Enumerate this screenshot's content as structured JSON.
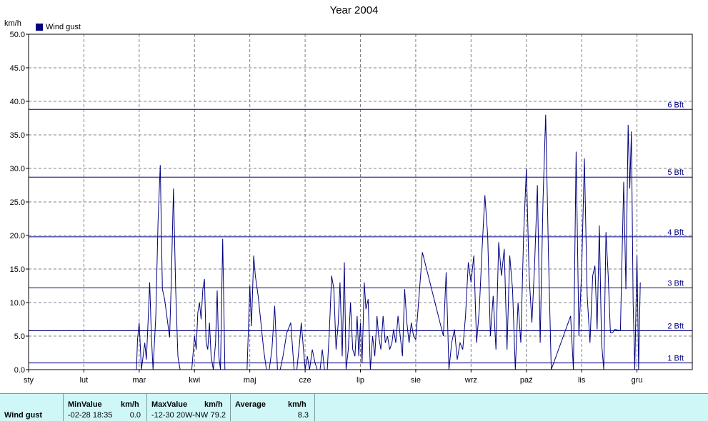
{
  "chart_data": {
    "type": "line",
    "title": "Year 2004",
    "ylabel": "km/h",
    "ylim": [
      0,
      50
    ],
    "yticks": [
      "0.0",
      "5.0",
      "10.0",
      "15.0",
      "20.0",
      "25.0",
      "30.0",
      "35.0",
      "40.0",
      "45.0",
      "50.0"
    ],
    "xticks": [
      "sty",
      "lut",
      "mar",
      "kwi",
      "maj",
      "cze",
      "lip",
      "sie",
      "wrz",
      "paź",
      "lis",
      "gru"
    ],
    "grid": true,
    "legend_position": "top-left",
    "beaufort_lines": [
      {
        "label": "1 Bft",
        "value": 1.0
      },
      {
        "label": "2 Bft",
        "value": 5.8
      },
      {
        "label": "3 Bft",
        "value": 12.2
      },
      {
        "label": "4 Bft",
        "value": 19.8
      },
      {
        "label": "5 Bft",
        "value": 28.7
      },
      {
        "label": "6 Bft",
        "value": 38.8
      }
    ],
    "series": [
      {
        "name": "Wind gust",
        "color": "#000080",
        "x_unit": "month (1 = January)",
        "points": [
          [
            2.95,
            0
          ],
          [
            2.97,
            4.5
          ],
          [
            3.0,
            7.0
          ],
          [
            3.02,
            3.5
          ],
          [
            3.04,
            0
          ],
          [
            3.07,
            2.0
          ],
          [
            3.1,
            4.0
          ],
          [
            3.13,
            1.5
          ],
          [
            3.16,
            7.0
          ],
          [
            3.19,
            13.0
          ],
          [
            3.22,
            5.0
          ],
          [
            3.25,
            0
          ],
          [
            3.3,
            8.0
          ],
          [
            3.34,
            22.0
          ],
          [
            3.38,
            30.5
          ],
          [
            3.42,
            12.0
          ],
          [
            3.46,
            10.5
          ],
          [
            3.5,
            8.0
          ],
          [
            3.55,
            4.8
          ],
          [
            3.58,
            13.0
          ],
          [
            3.62,
            27.0
          ],
          [
            3.66,
            12.0
          ],
          [
            3.7,
            2.0
          ],
          [
            3.74,
            0
          ],
          [
            3.95,
            0
          ],
          [
            4.0,
            5.0
          ],
          [
            4.03,
            3.0
          ],
          [
            4.06,
            8.5
          ],
          [
            4.09,
            10.0
          ],
          [
            4.12,
            7.5
          ],
          [
            4.15,
            12.0
          ],
          [
            4.18,
            13.5
          ],
          [
            4.21,
            4.0
          ],
          [
            4.24,
            3.0
          ],
          [
            4.27,
            7.0
          ],
          [
            4.3,
            2.0
          ],
          [
            4.34,
            0
          ],
          [
            4.38,
            4.0
          ],
          [
            4.41,
            11.8
          ],
          [
            4.44,
            2.0
          ],
          [
            4.47,
            0
          ],
          [
            4.51,
            19.5
          ],
          [
            4.55,
            0
          ],
          [
            4.6,
            0
          ],
          [
            4.95,
            0
          ],
          [
            5.0,
            12.5
          ],
          [
            5.03,
            6.5
          ],
          [
            5.07,
            17.0
          ],
          [
            5.1,
            14.0
          ],
          [
            5.15,
            11.0
          ],
          [
            5.2,
            7.0
          ],
          [
            5.25,
            3.0
          ],
          [
            5.3,
            0
          ],
          [
            5.35,
            0
          ],
          [
            5.4,
            3.0
          ],
          [
            5.45,
            9.5
          ],
          [
            5.5,
            0
          ],
          [
            5.55,
            0
          ],
          [
            5.6,
            2.0
          ],
          [
            5.67,
            5.5
          ],
          [
            5.74,
            7.0
          ],
          [
            5.8,
            0
          ],
          [
            5.85,
            0
          ],
          [
            5.9,
            4.0
          ],
          [
            5.93,
            7.0
          ],
          [
            5.97,
            3.0
          ],
          [
            6.0,
            0
          ],
          [
            6.04,
            2.0
          ],
          [
            6.08,
            0
          ],
          [
            6.13,
            3.0
          ],
          [
            6.18,
            1.0
          ],
          [
            6.22,
            0
          ],
          [
            6.27,
            0
          ],
          [
            6.31,
            3.0
          ],
          [
            6.35,
            0
          ],
          [
            6.4,
            0
          ],
          [
            6.44,
            6.0
          ],
          [
            6.48,
            14.0
          ],
          [
            6.52,
            12.0
          ],
          [
            6.56,
            3.0
          ],
          [
            6.6,
            7.0
          ],
          [
            6.63,
            13.0
          ],
          [
            6.67,
            2.0
          ],
          [
            6.71,
            16.0
          ],
          [
            6.74,
            0
          ],
          [
            6.78,
            3.0
          ],
          [
            6.82,
            10.0
          ],
          [
            6.86,
            3.0
          ],
          [
            6.9,
            2.0
          ],
          [
            6.94,
            8.0
          ],
          [
            6.97,
            2.0
          ],
          [
            7.0,
            7.0
          ],
          [
            7.03,
            1.0
          ],
          [
            7.07,
            13.0
          ],
          [
            7.1,
            9.0
          ],
          [
            7.14,
            10.5
          ],
          [
            7.18,
            0
          ],
          [
            7.22,
            5.0
          ],
          [
            7.26,
            2.0
          ],
          [
            7.3,
            8.0
          ],
          [
            7.33,
            5.0
          ],
          [
            7.37,
            3.0
          ],
          [
            7.41,
            8.0
          ],
          [
            7.45,
            4.0
          ],
          [
            7.49,
            5.0
          ],
          [
            7.53,
            3.0
          ],
          [
            7.57,
            4.0
          ],
          [
            7.6,
            6.0
          ],
          [
            7.64,
            4.0
          ],
          [
            7.68,
            8.0
          ],
          [
            7.72,
            5.0
          ],
          [
            7.76,
            2.0
          ],
          [
            7.8,
            12.0
          ],
          [
            7.84,
            7.0
          ],
          [
            7.88,
            4.0
          ],
          [
            7.92,
            7.0
          ],
          [
            7.96,
            5.0
          ],
          [
            8.0,
            4.5
          ],
          [
            8.12,
            17.5
          ],
          [
            8.5,
            5.0
          ],
          [
            8.55,
            14.5
          ],
          [
            8.6,
            0
          ],
          [
            8.65,
            4.0
          ],
          [
            8.7,
            6.0
          ],
          [
            8.75,
            1.5
          ],
          [
            8.8,
            4.0
          ],
          [
            8.85,
            3.0
          ],
          [
            8.9,
            8.0
          ],
          [
            8.95,
            16.0
          ],
          [
            9.0,
            13.0
          ],
          [
            9.05,
            17.0
          ],
          [
            9.1,
            4.0
          ],
          [
            9.15,
            9.0
          ],
          [
            9.2,
            18.0
          ],
          [
            9.25,
            26.0
          ],
          [
            9.3,
            20.0
          ],
          [
            9.35,
            5.0
          ],
          [
            9.4,
            11.0
          ],
          [
            9.45,
            3.0
          ],
          [
            9.5,
            19.0
          ],
          [
            9.55,
            14.0
          ],
          [
            9.6,
            18.0
          ],
          [
            9.65,
            3.0
          ],
          [
            9.7,
            17.0
          ],
          [
            9.75,
            12.0
          ],
          [
            9.8,
            0
          ],
          [
            9.85,
            10.0
          ],
          [
            9.9,
            4.0
          ],
          [
            9.95,
            20.0
          ],
          [
            10.0,
            30.0
          ],
          [
            10.05,
            14.0
          ],
          [
            10.1,
            7.0
          ],
          [
            10.15,
            16.0
          ],
          [
            10.2,
            27.5
          ],
          [
            10.25,
            4.0
          ],
          [
            10.3,
            25.0
          ],
          [
            10.35,
            38.0
          ],
          [
            10.4,
            17.0
          ],
          [
            10.45,
            0
          ],
          [
            10.8,
            8.0
          ],
          [
            10.85,
            0
          ],
          [
            10.9,
            32.5
          ],
          [
            10.95,
            5.0
          ],
          [
            11.0,
            15.0
          ],
          [
            11.05,
            31.5
          ],
          [
            11.1,
            11.0
          ],
          [
            11.15,
            4.0
          ],
          [
            11.2,
            14.0
          ],
          [
            11.24,
            15.5
          ],
          [
            11.28,
            6.0
          ],
          [
            11.32,
            21.5
          ],
          [
            11.36,
            4.0
          ],
          [
            11.4,
            0
          ],
          [
            11.44,
            20.5
          ],
          [
            11.48,
            14.0
          ],
          [
            11.52,
            5.5
          ],
          [
            11.56,
            5.5
          ],
          [
            11.6,
            6.0
          ],
          [
            11.7,
            5.8
          ],
          [
            11.76,
            28.0
          ],
          [
            11.8,
            12.0
          ],
          [
            11.84,
            36.5
          ],
          [
            11.87,
            27.0
          ],
          [
            11.9,
            35.5
          ],
          [
            11.93,
            10.0
          ],
          [
            11.96,
            0
          ],
          [
            12.0,
            17.0
          ],
          [
            12.03,
            0
          ],
          [
            12.06,
            13.0
          ]
        ]
      }
    ]
  },
  "unit_label": "km/h",
  "legend_label": "Wind gust",
  "stats": {
    "row_label": "Wind gust",
    "min_header": "MinValue",
    "min_unit": "km/h",
    "min_time": "-02-28  18:35",
    "min_value": "0.0",
    "max_header": "MaxValue",
    "max_unit": "km/h",
    "max_time": "-12-30  20W-NW",
    "max_value": "79.2",
    "avg_header": "Average",
    "avg_unit": "km/h",
    "avg_value": "8.3"
  }
}
